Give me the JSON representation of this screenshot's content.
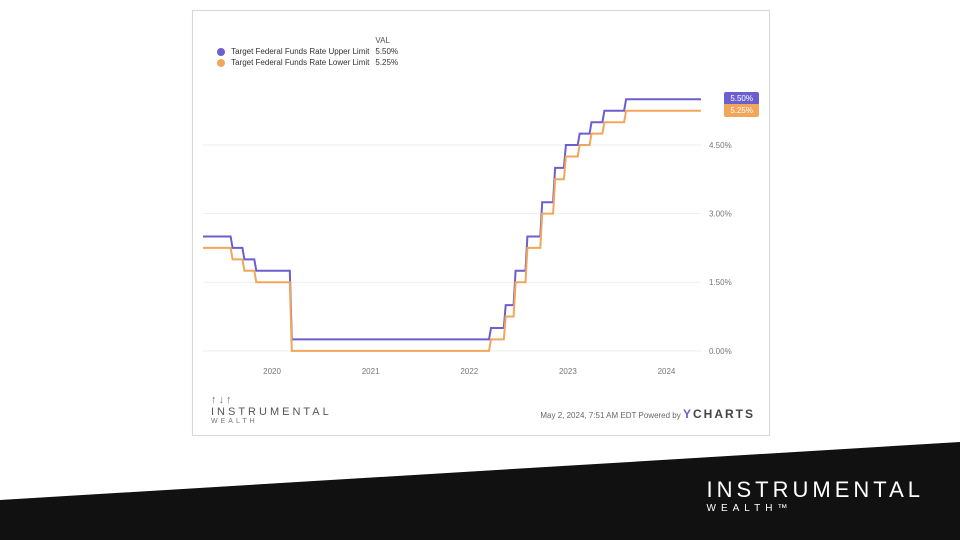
{
  "chart": {
    "type": "line",
    "background_color": "#ffffff",
    "grid_color": "#eeeeee",
    "axis_text_color": "#777777",
    "x": {
      "min": 2019.3,
      "max": 2024.35,
      "ticks": [
        2020,
        2021,
        2022,
        2023,
        2024
      ],
      "tick_labels": [
        "2020",
        "2021",
        "2022",
        "2023",
        "2024"
      ]
    },
    "y": {
      "min": -0.2,
      "max": 5.9,
      "ticks": [
        0.0,
        1.5,
        3.0,
        4.5
      ],
      "tick_labels": [
        "0.00%",
        "1.50%",
        "3.00%",
        "4.50%"
      ]
    },
    "legend": {
      "header_val": "VAL",
      "rows": [
        {
          "label": "Target Federal Funds Rate Upper Limit",
          "val": "5.50%",
          "color": "#6b5ecf"
        },
        {
          "label": "Target Federal Funds Rate Lower Limit",
          "val": "5.25%",
          "color": "#f2a65a"
        }
      ]
    },
    "series": [
      {
        "name": "upper",
        "color": "#6b5ecf",
        "stroke_width": 2,
        "badge": "5.50%",
        "points": [
          [
            2019.3,
            2.5
          ],
          [
            2019.58,
            2.5
          ],
          [
            2019.6,
            2.25
          ],
          [
            2019.7,
            2.25
          ],
          [
            2019.72,
            2.0
          ],
          [
            2019.82,
            2.0
          ],
          [
            2019.84,
            1.75
          ],
          [
            2020.18,
            1.75
          ],
          [
            2020.2,
            0.25
          ],
          [
            2022.2,
            0.25
          ],
          [
            2022.22,
            0.5
          ],
          [
            2022.35,
            0.5
          ],
          [
            2022.37,
            1.0
          ],
          [
            2022.45,
            1.0
          ],
          [
            2022.47,
            1.75
          ],
          [
            2022.57,
            1.75
          ],
          [
            2022.59,
            2.5
          ],
          [
            2022.72,
            2.5
          ],
          [
            2022.74,
            3.25
          ],
          [
            2022.85,
            3.25
          ],
          [
            2022.87,
            4.0
          ],
          [
            2022.96,
            4.0
          ],
          [
            2022.98,
            4.5
          ],
          [
            2023.1,
            4.5
          ],
          [
            2023.12,
            4.75
          ],
          [
            2023.22,
            4.75
          ],
          [
            2023.24,
            5.0
          ],
          [
            2023.35,
            5.0
          ],
          [
            2023.37,
            5.25
          ],
          [
            2023.57,
            5.25
          ],
          [
            2023.59,
            5.5
          ],
          [
            2024.35,
            5.5
          ]
        ]
      },
      {
        "name": "lower",
        "color": "#f2a65a",
        "stroke_width": 2,
        "badge": "5.25%",
        "points": [
          [
            2019.3,
            2.25
          ],
          [
            2019.58,
            2.25
          ],
          [
            2019.6,
            2.0
          ],
          [
            2019.7,
            2.0
          ],
          [
            2019.72,
            1.75
          ],
          [
            2019.82,
            1.75
          ],
          [
            2019.84,
            1.5
          ],
          [
            2020.18,
            1.5
          ],
          [
            2020.2,
            0.0
          ],
          [
            2022.2,
            0.0
          ],
          [
            2022.22,
            0.25
          ],
          [
            2022.35,
            0.25
          ],
          [
            2022.37,
            0.75
          ],
          [
            2022.45,
            0.75
          ],
          [
            2022.47,
            1.5
          ],
          [
            2022.57,
            1.5
          ],
          [
            2022.59,
            2.25
          ],
          [
            2022.72,
            2.25
          ],
          [
            2022.74,
            3.0
          ],
          [
            2022.85,
            3.0
          ],
          [
            2022.87,
            3.75
          ],
          [
            2022.96,
            3.75
          ],
          [
            2022.98,
            4.25
          ],
          [
            2023.1,
            4.25
          ],
          [
            2023.12,
            4.5
          ],
          [
            2023.22,
            4.5
          ],
          [
            2023.24,
            4.75
          ],
          [
            2023.35,
            4.75
          ],
          [
            2023.37,
            5.0
          ],
          [
            2023.57,
            5.0
          ],
          [
            2023.59,
            5.25
          ],
          [
            2024.35,
            5.25
          ]
        ]
      }
    ],
    "footer": {
      "brand_line1": "INSTRUMENTAL",
      "brand_line2": "WEALTH",
      "timestamp": "May 2, 2024, 7:51 AM EDT",
      "powered_by": "Powered by",
      "provider": "CHARTS",
      "provider_prefix": "Y"
    }
  },
  "banner": {
    "bg_color": "#111111",
    "line1": "INSTRUMENTAL",
    "line2": "WEALTH™"
  }
}
